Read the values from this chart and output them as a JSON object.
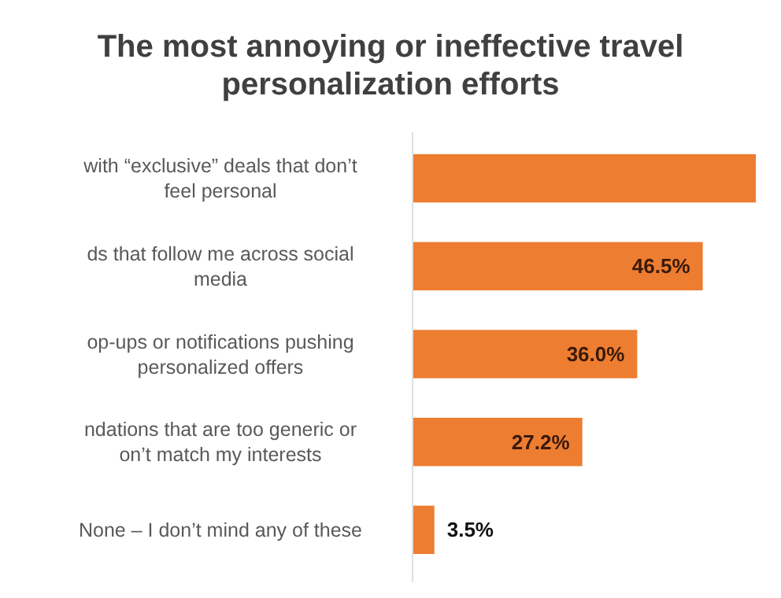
{
  "chart_data": {
    "type": "bar",
    "orientation": "horizontal",
    "title": "The most annoying or ineffective travel\npersonalization efforts",
    "categories": [
      "with “exclusive” deals that don’t\nfeel personal",
      "ds that follow me across social\nmedia",
      "op-ups or notifications pushing\npersonalized offers",
      "ndations that are too generic or\non’t match my interests",
      "None – I don’t mind any of these"
    ],
    "values": [
      55,
      46.5,
      36.0,
      27.2,
      3.5
    ],
    "value_labels": [
      null,
      "46.5%",
      "36.0%",
      "27.2%",
      "3.5%"
    ],
    "color": "#ed7d31"
  }
}
